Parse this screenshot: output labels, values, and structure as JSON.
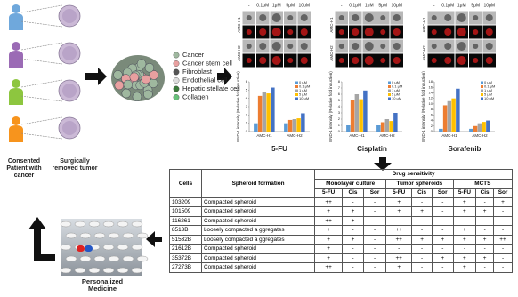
{
  "diagram": {
    "patient_label": "Consented Patient with cancer",
    "tumor_label": "Surgically removed tumor",
    "cell_types": [
      "Cancer",
      "Cancer stem cell",
      "Fibroblast",
      "Endothelial cell",
      "Hepatic stellate cell",
      "Collagen"
    ],
    "outcome_label": "Personalized Medicine"
  },
  "micrographs": [
    {
      "columns": [
        "-",
        "0.1μM",
        "1μM",
        "5μM",
        "10μM"
      ],
      "rows": [
        "AMC-H1",
        "AMC-H2"
      ]
    },
    {
      "columns": [
        "-",
        "0.1μM",
        "1μM",
        "5μM",
        "10μM"
      ],
      "rows": [
        "AMC-H1",
        "AMC-H2"
      ]
    },
    {
      "columns": [
        "-",
        "0.1μM",
        "1μM",
        "5μM",
        "10μM"
      ],
      "rows": [
        "AMC-H1",
        "AMC-H2"
      ]
    }
  ],
  "chart_data": [
    {
      "type": "bar",
      "title": "5-FU",
      "ylabel": "END-1 intensity (Relative fold induction)",
      "categories": [
        "AMC-H1",
        "AMC-H2"
      ],
      "ylim": [
        0,
        6
      ],
      "yticks": [
        0,
        1,
        2,
        3,
        4,
        5,
        6
      ],
      "legend": "upper right",
      "series": [
        {
          "name": "0 μM",
          "color": "#5b9bd5",
          "values": [
            1,
            1
          ]
        },
        {
          "name": "0.1 μM",
          "color": "#ed7d31",
          "values": [
            4.3,
            1.4
          ]
        },
        {
          "name": "1 μM",
          "color": "#a5a5a5",
          "values": [
            4.8,
            1.5
          ]
        },
        {
          "name": "5 μM",
          "color": "#ffc000",
          "values": [
            4.6,
            1.6
          ]
        },
        {
          "name": "10 μM",
          "color": "#4472c4",
          "values": [
            5.3,
            2.2
          ]
        }
      ]
    },
    {
      "type": "bar",
      "title": "Cisplatin",
      "ylabel": "END-1 intensity (Relative fold induction)",
      "categories": [
        "AMC-H1",
        "AMC-H2"
      ],
      "ylim": [
        0,
        8
      ],
      "yticks": [
        0,
        1,
        2,
        3,
        4,
        5,
        6,
        7,
        8
      ],
      "legend": "upper right",
      "series": [
        {
          "name": "0 μM",
          "color": "#5b9bd5",
          "values": [
            1,
            1
          ]
        },
        {
          "name": "0.1 μM",
          "color": "#ed7d31",
          "values": [
            5,
            1.5
          ]
        },
        {
          "name": "1 μM",
          "color": "#a5a5a5",
          "values": [
            6,
            2
          ]
        },
        {
          "name": "5 μM",
          "color": "#ffc000",
          "values": [
            5.2,
            1.7
          ]
        },
        {
          "name": "10 μM",
          "color": "#4472c4",
          "values": [
            6.6,
            3
          ]
        }
      ]
    },
    {
      "type": "bar",
      "title": "Sorafenib",
      "ylabel": "END-1 intensity (Relative fold induction)",
      "categories": [
        "AMC-H1",
        "AMC-H2"
      ],
      "ylim": [
        0,
        18
      ],
      "yticks": [
        0,
        2,
        4,
        6,
        8,
        10,
        12,
        14,
        16,
        18
      ],
      "legend": "upper right",
      "series": [
        {
          "name": "0 μM",
          "color": "#5b9bd5",
          "values": [
            1,
            1
          ]
        },
        {
          "name": "0.1 μM",
          "color": "#ed7d31",
          "values": [
            9.5,
            2
          ]
        },
        {
          "name": "1 μM",
          "color": "#a5a5a5",
          "values": [
            11,
            3
          ]
        },
        {
          "name": "5 μM",
          "color": "#ffc000",
          "values": [
            12,
            3.5
          ]
        },
        {
          "name": "10 μM",
          "color": "#4472c4",
          "values": [
            15.5,
            4
          ]
        }
      ]
    }
  ],
  "table": {
    "header": {
      "cells": "Cells",
      "spheroid": "Spheroid formation",
      "drug": "Drug sensitivity",
      "groups": [
        "Monolayer culture",
        "Tumor spheroids",
        "MCTS"
      ],
      "drugs": [
        [
          "5-FU",
          "Cis",
          "Sor"
        ],
        [
          "5-FU",
          "Cis",
          "Sor"
        ],
        [
          "5-FU",
          "Cis",
          "Sor"
        ]
      ]
    },
    "rows": [
      [
        "103209",
        "Compacted spheroid",
        "++",
        "-",
        "-",
        "+",
        "-",
        "-",
        "+",
        "-",
        "+"
      ],
      [
        "101509",
        "Compacted spheroid",
        "+",
        "+",
        "-",
        "+",
        "+",
        "-",
        "+",
        "+",
        "-"
      ],
      [
        "116261",
        "Compacted spheroid",
        "++",
        "+",
        "-",
        "-",
        "-",
        "-",
        "-",
        "-",
        "-"
      ],
      [
        "8513B",
        "Loosely compacted a ggregates",
        "+",
        "-",
        "-",
        "++",
        "-",
        "-",
        "+",
        "-",
        "-"
      ],
      [
        "51532B",
        "Loosely compacted a ggregates",
        "+",
        "+",
        "-",
        "++",
        "+",
        "+",
        "+",
        "+",
        "++"
      ],
      [
        "21612B",
        "Compacted spheroid",
        "+",
        "-",
        "-",
        "-",
        "-",
        "-",
        "-",
        "-",
        "-"
      ],
      [
        "35372B",
        "Compacted spheroid",
        "+",
        "-",
        "-",
        "++",
        "-",
        "+",
        "+",
        "+",
        "-"
      ],
      [
        "27273B",
        "Compacted spheroid",
        "++",
        "-",
        "-",
        "+",
        "-",
        "-",
        "+",
        "-",
        "-"
      ]
    ]
  }
}
